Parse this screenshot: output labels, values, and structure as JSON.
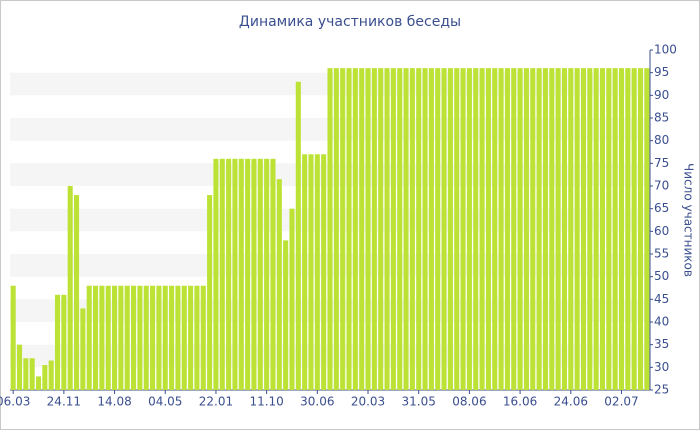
{
  "chart_data": {
    "type": "bar",
    "title": "Динамика участников беседы",
    "y_label": "Число участников",
    "categories": [
      "06.03",
      null,
      null,
      null,
      null,
      null,
      null,
      null,
      "24.11",
      null,
      null,
      null,
      null,
      null,
      null,
      null,
      "14.08",
      null,
      null,
      null,
      null,
      null,
      null,
      null,
      "04.05",
      null,
      null,
      null,
      null,
      null,
      null,
      null,
      "22.01",
      null,
      null,
      null,
      null,
      null,
      null,
      null,
      "11.10",
      null,
      null,
      null,
      null,
      null,
      null,
      null,
      "30.06",
      null,
      null,
      null,
      null,
      null,
      null,
      null,
      "20.03",
      null,
      null,
      null,
      null,
      null,
      null,
      null,
      "31.05",
      null,
      null,
      null,
      null,
      null,
      null,
      null,
      "08.06",
      null,
      null,
      null,
      null,
      null,
      null,
      null,
      "16.06",
      null,
      null,
      null,
      null,
      null,
      null,
      null,
      "24.06",
      null,
      null,
      null,
      null,
      null,
      null,
      null,
      "02.07",
      null,
      null,
      null,
      null
    ],
    "values": [
      48,
      35,
      32,
      32,
      28,
      30.5,
      31.5,
      46,
      46,
      70,
      68,
      43,
      48,
      48,
      48,
      48,
      48,
      48,
      48,
      48,
      48,
      48,
      48,
      48,
      48,
      48,
      48,
      48,
      48,
      48,
      48,
      68,
      76,
      76,
      76,
      76,
      76,
      76,
      76,
      76,
      76,
      76,
      71.5,
      58,
      65,
      93,
      77,
      77,
      77,
      77,
      96,
      96,
      96,
      96,
      96,
      96,
      96,
      96,
      96,
      96,
      96,
      96,
      96,
      96,
      96,
      96,
      96,
      96,
      96,
      96,
      96,
      96,
      96,
      96,
      96,
      96,
      96,
      96,
      96,
      96,
      96,
      96,
      96,
      96,
      96,
      96,
      96,
      96,
      96,
      96,
      96,
      96,
      96,
      96,
      96,
      96,
      96,
      96,
      96,
      96,
      96
    ],
    "color": "#bce236",
    "ylim": [
      25,
      100
    ],
    "yticks": [
      25,
      30,
      35,
      40,
      45,
      50,
      55,
      60,
      65,
      70,
      75,
      80,
      85,
      90,
      95,
      100
    ],
    "grid": true
  }
}
